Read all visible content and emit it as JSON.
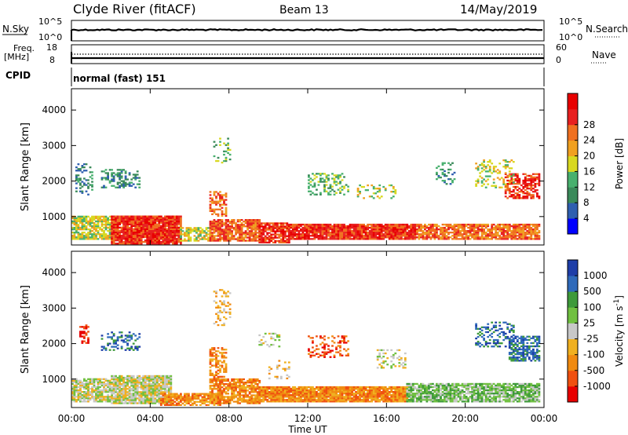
{
  "header": {
    "station": "Clyde River (fitACF)",
    "beam": "Beam 13",
    "date": "14/May/2019"
  },
  "strips": {
    "nsky_label": "N.Sky",
    "nsky_ticks": [
      "10^5",
      "10^0"
    ],
    "nsearch_label": "N.Search",
    "nsearch_ticks": [
      "10^5",
      "10^0"
    ],
    "freq_label_1": "Freq.",
    "freq_label_2": "[MHz]",
    "freq_ticks": [
      "18",
      "8"
    ],
    "nave_label": "Nave",
    "nave_ticks": [
      "60",
      "0"
    ],
    "cpid_label": "CPID",
    "cpid_value": "normal (fast) 151"
  },
  "colors": {
    "power": [
      "#0000ff",
      "#2f5fb0",
      "#3a8a5a",
      "#48b06e",
      "#d8d820",
      "#f0a020",
      "#f07020",
      "#e82020",
      "#e80000"
    ],
    "velocity": [
      "#e80000",
      "#f05010",
      "#f08a10",
      "#f0b020",
      "#c8c8c8",
      "#70c040",
      "#3e9a3a",
      "#2f6aba",
      "#1e3ea8"
    ]
  },
  "chart_data": [
    {
      "type": "heatmap",
      "name": "power",
      "ylabel": "Slant Range [km]",
      "xlabel": "Time UT",
      "x_ticks": [
        "00:00",
        "04:00",
        "08:00",
        "12:00",
        "16:00",
        "20:00",
        "00:00"
      ],
      "y_ticks": [
        "1000",
        "2000",
        "3000",
        "4000"
      ],
      "ylim": [
        200,
        4600
      ],
      "xlim": [
        0,
        24
      ],
      "colorbar_label": "Power [dB]",
      "colorbar_ticks": [
        "4",
        "8",
        "12",
        "16",
        "20",
        "24",
        "28"
      ]
    },
    {
      "type": "heatmap",
      "name": "velocity",
      "ylabel": "Slant Range [km]",
      "xlabel": "Time UT",
      "x_ticks": [
        "00:00",
        "04:00",
        "08:00",
        "12:00",
        "16:00",
        "20:00",
        "00:00"
      ],
      "y_ticks": [
        "1000",
        "2000",
        "3000",
        "4000"
      ],
      "ylim": [
        200,
        4600
      ],
      "xlim": [
        0,
        24
      ],
      "colorbar_label": "Velocity [m s^-1]",
      "colorbar_ticks": [
        "-1000",
        "-500",
        "-100",
        "-25",
        "25",
        "100",
        "500",
        "1000"
      ]
    }
  ],
  "axis": {
    "time_label": "Time UT"
  }
}
